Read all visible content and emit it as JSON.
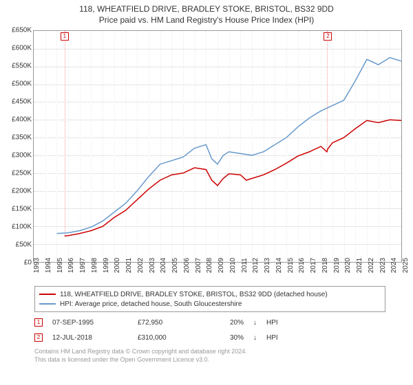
{
  "title": "118, WHEATFIELD DRIVE, BRADLEY STOKE, BRISTOL, BS32 9DD",
  "subtitle": "Price paid vs. HM Land Registry's House Price Index (HPI)",
  "chart": {
    "type": "line",
    "background_color": "#ffffff",
    "grid_color": "#cccccc",
    "border_color": "#999999",
    "xlim": [
      1993,
      2025
    ],
    "ylim": [
      0,
      650000
    ],
    "ytick_step": 50000,
    "yticks": [
      "£0",
      "£50K",
      "£100K",
      "£150K",
      "£200K",
      "£250K",
      "£300K",
      "£350K",
      "£400K",
      "£450K",
      "£500K",
      "£550K",
      "£600K",
      "£650K"
    ],
    "xticks": [
      "1993",
      "1994",
      "1995",
      "1996",
      "1997",
      "1998",
      "1999",
      "2000",
      "2001",
      "2002",
      "2003",
      "2004",
      "2005",
      "2006",
      "2007",
      "2008",
      "2009",
      "2010",
      "2011",
      "2012",
      "2013",
      "2014",
      "2015",
      "2016",
      "2017",
      "2018",
      "2019",
      "2020",
      "2021",
      "2022",
      "2023",
      "2024",
      "2025"
    ],
    "label_fontsize": 10,
    "title_fontsize": 12,
    "series": [
      {
        "color": "#cc0000",
        "width": 1.5,
        "label": "118, WHEATFIELD DRIVE, BRADLEY STOKE, BRISTOL, BS32 9DD (detached house)",
        "x": [
          1995.68,
          1996,
          1997,
          1998,
          1999,
          2000,
          2001,
          2002,
          2003,
          2004,
          2005,
          2006,
          2007,
          2008,
          2008.5,
          2009,
          2009.5,
          2010,
          2011,
          2011.5,
          2012,
          2013,
          2014,
          2015,
          2016,
          2017,
          2018,
          2018.52,
          2018.6,
          2019,
          2020,
          2021,
          2022,
          2023,
          2024,
          2025
        ],
        "y": [
          72950,
          74000,
          80000,
          88000,
          100000,
          125000,
          145000,
          175000,
          205000,
          230000,
          245000,
          250000,
          265000,
          260000,
          230000,
          215000,
          235000,
          248000,
          245000,
          230000,
          235000,
          245000,
          260000,
          278000,
          298000,
          310000,
          325000,
          310000,
          318000,
          335000,
          350000,
          375000,
          398000,
          392000,
          400000,
          398000
        ]
      },
      {
        "color": "#6699cc",
        "width": 1.5,
        "label": "HPI: Average price, detached house, South Gloucestershire",
        "x": [
          1995,
          1996,
          1997,
          1998,
          1999,
          2000,
          2001,
          2002,
          2003,
          2004,
          2005,
          2006,
          2007,
          2008,
          2008.5,
          2009,
          2009.5,
          2010,
          2011,
          2012,
          2013,
          2014,
          2015,
          2016,
          2017,
          2018,
          2019,
          2020,
          2021,
          2022,
          2023,
          2024,
          2025
        ],
        "y": [
          80000,
          82000,
          88000,
          98000,
          115000,
          140000,
          165000,
          200000,
          240000,
          275000,
          285000,
          295000,
          320000,
          330000,
          290000,
          275000,
          300000,
          310000,
          305000,
          300000,
          310000,
          330000,
          350000,
          380000,
          405000,
          425000,
          440000,
          455000,
          510000,
          570000,
          555000,
          575000,
          565000
        ]
      }
    ],
    "markers": [
      {
        "num": "1",
        "x": 1995.68,
        "y_top": 650000,
        "y_point": 72950,
        "color": "#cc0000"
      },
      {
        "num": "2",
        "x": 2018.52,
        "y_top": 650000,
        "y_point": 310000,
        "color": "#cc0000"
      }
    ],
    "marker_line_color": "#ff9999"
  },
  "legend": {
    "items": [
      {
        "color": "#cc0000",
        "label": "118, WHEATFIELD DRIVE, BRADLEY STOKE, BRISTOL, BS32 9DD (detached house)"
      },
      {
        "color": "#6699cc",
        "label": "HPI: Average price, detached house, South Gloucestershire"
      }
    ]
  },
  "events": [
    {
      "num": "1",
      "date": "07-SEP-1995",
      "price": "£72,950",
      "pct": "20%",
      "arrow": "↓",
      "vs": "HPI"
    },
    {
      "num": "2",
      "date": "12-JUL-2018",
      "price": "£310,000",
      "pct": "30%",
      "arrow": "↓",
      "vs": "HPI"
    }
  ],
  "footer": {
    "line1": "Contains HM Land Registry data © Crown copyright and database right 2024.",
    "line2": "This data is licensed under the Open Government Licence v3.0."
  }
}
